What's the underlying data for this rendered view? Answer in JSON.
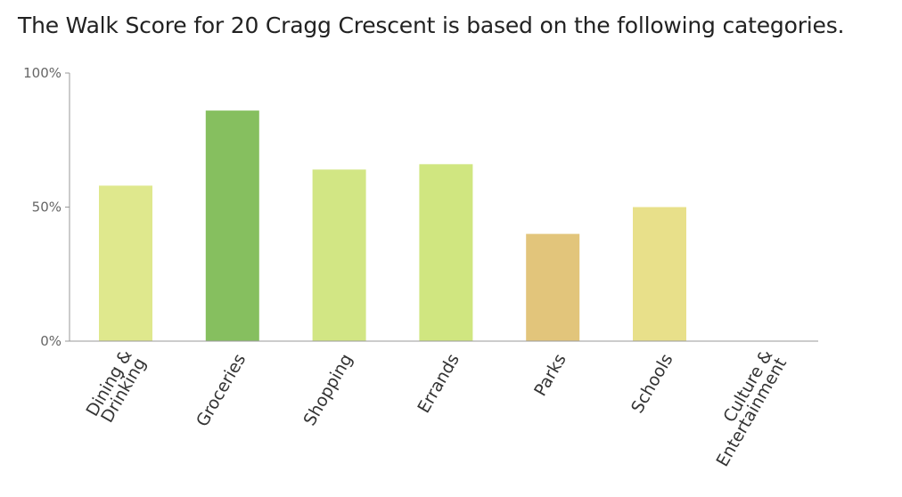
{
  "title": "The Walk Score for 20 Cragg Crescent is based on the following categories.",
  "chart_data": {
    "type": "bar",
    "title": "The Walk Score for 20 Cragg Crescent is based on the following categories.",
    "xlabel": "",
    "ylabel": "",
    "ylim": [
      0,
      100
    ],
    "y_ticks": [
      {
        "value": 0,
        "label": "0%"
      },
      {
        "value": 50,
        "label": "50%"
      },
      {
        "value": 100,
        "label": "100%"
      }
    ],
    "categories": [
      {
        "label": "Dining & Drinking",
        "lines": [
          "Dining &",
          "Drinking"
        ]
      },
      {
        "label": "Groceries",
        "lines": [
          "Groceries"
        ]
      },
      {
        "label": "Shopping",
        "lines": [
          "Shopping"
        ]
      },
      {
        "label": "Errands",
        "lines": [
          "Errands"
        ]
      },
      {
        "label": "Parks",
        "lines": [
          "Parks"
        ]
      },
      {
        "label": "Schools",
        "lines": [
          "Schools"
        ]
      },
      {
        "label": "Culture & Entertainment",
        "lines": [
          "Culture &",
          "Entertainment"
        ]
      }
    ],
    "values": [
      58,
      86,
      64,
      66,
      40,
      50,
      0
    ],
    "colors": [
      "#dfe88d",
      "#86bf5f",
      "#d2e684",
      "#d0e680",
      "#e2c57b",
      "#e8e08a",
      "#e8e08a"
    ],
    "grid": false,
    "legend": "none"
  },
  "colors": {
    "axis": "#999999",
    "text": "#333333",
    "tick_text": "#666666"
  }
}
